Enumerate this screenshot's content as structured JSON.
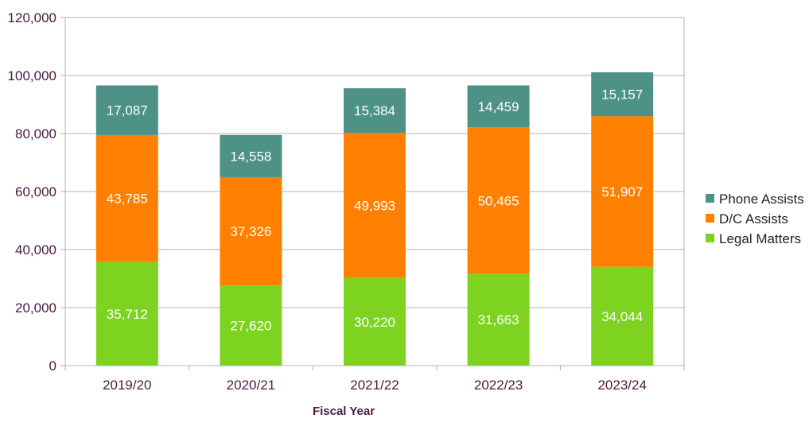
{
  "chart_data": {
    "type": "bar",
    "stacked": true,
    "categories": [
      "2019/20",
      "2020/21",
      "2021/22",
      "2022/23",
      "2023/24"
    ],
    "series": [
      {
        "name": "Legal Matters",
        "color": "#7ed321",
        "values": [
          35712,
          27620,
          30220,
          31663,
          34044
        ]
      },
      {
        "name": "D/C Assists",
        "color": "#ff8000",
        "values": [
          43785,
          37326,
          49993,
          50465,
          51907
        ]
      },
      {
        "name": "Phone Assists",
        "color": "#4e9187",
        "values": [
          17087,
          14558,
          15384,
          14459,
          15157
        ]
      }
    ],
    "data_labels": [
      [
        "35,712",
        "27,620",
        "30,220",
        "31,663",
        "34,044"
      ],
      [
        "43,785",
        "37,326",
        "49,993",
        "50,465",
        "51,907"
      ],
      [
        "17,087",
        "14,558",
        "15,384",
        "14,459",
        "15,157"
      ]
    ],
    "yticks": [
      "0",
      "20,000",
      "40,000",
      "60,000",
      "80,000",
      "100,000",
      "120,000"
    ],
    "title": "",
    "xlabel": "Fiscal Year",
    "ylabel": "",
    "ylim": [
      0,
      120000
    ],
    "grid": true,
    "legend_position": "right",
    "legend_order": [
      "Phone Assists",
      "D/C Assists",
      "Legal Matters"
    ]
  }
}
